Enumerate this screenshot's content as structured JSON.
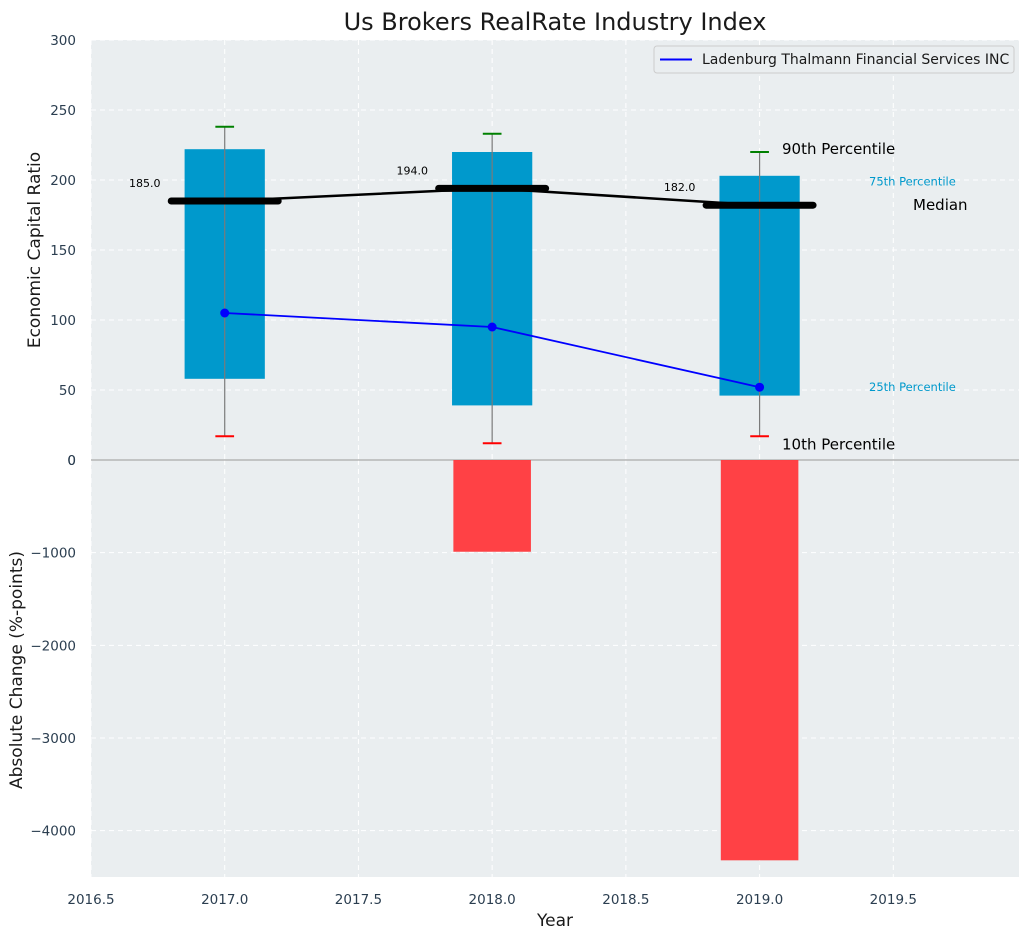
{
  "colors": {
    "panel_bg": "#eaeef0",
    "grid": "#ffffff",
    "box": "#0099cc",
    "median": "#000000",
    "company_line": "#0000ff",
    "whisker_top": "#008000",
    "whisker_bottom": "#ff0000",
    "change_bar": "#ff3b3f",
    "pct_label_small": "#0099cc",
    "zero_line": "#aaaaaa"
  },
  "chart_data": [
    {
      "type": "box",
      "title": "Us Brokers RealRate Industry Index",
      "ylabel": "Economic Capital Ratio",
      "xlim": [
        2016.5,
        2019.97
      ],
      "ylim": [
        0,
        300
      ],
      "yticks": [
        0,
        50,
        100,
        150,
        200,
        250,
        300
      ],
      "grid": true,
      "legend": {
        "placement": "top-right",
        "entries": [
          "Ladenburg Thalmann Financial Services INC"
        ]
      },
      "years": [
        2017,
        2018,
        2019
      ],
      "p10": [
        17,
        12,
        17
      ],
      "p25": [
        58,
        39,
        46
      ],
      "median": [
        185,
        194,
        182
      ],
      "p75": [
        222,
        220,
        203
      ],
      "p90": [
        238,
        233,
        220
      ],
      "median_labels": [
        "185.0",
        "194.0",
        "182.0"
      ],
      "series": [
        {
          "name": "Ladenburg Thalmann Financial Services INC",
          "x": [
            2017,
            2018,
            2019
          ],
          "values": [
            105,
            95,
            52
          ]
        }
      ],
      "annotations": {
        "p90": "90th Percentile",
        "p75": "75th Percentile",
        "median": "Median",
        "p25": "25th Percentile",
        "p10": "10th Percentile"
      }
    },
    {
      "type": "bar",
      "xlabel": "Year",
      "ylabel": "Absolute Change (%-points)",
      "xlim": [
        2016.5,
        2019.97
      ],
      "ylim": [
        -4500,
        0
      ],
      "yticks": [
        0,
        -1000,
        -2000,
        -3000,
        -4000
      ],
      "ytick_labels": [
        "0",
        "−1000",
        "−2000",
        "−3000",
        "−4000"
      ],
      "xticks": [
        2016.5,
        2017.0,
        2017.5,
        2018.0,
        2018.5,
        2019.0,
        2019.5
      ],
      "xtick_labels": [
        "2016.5",
        "2017.0",
        "2017.5",
        "2018.0",
        "2018.5",
        "2019.0",
        "2019.5"
      ],
      "grid": true,
      "x": [
        2018,
        2019
      ],
      "values": [
        -990,
        -4320
      ]
    }
  ]
}
